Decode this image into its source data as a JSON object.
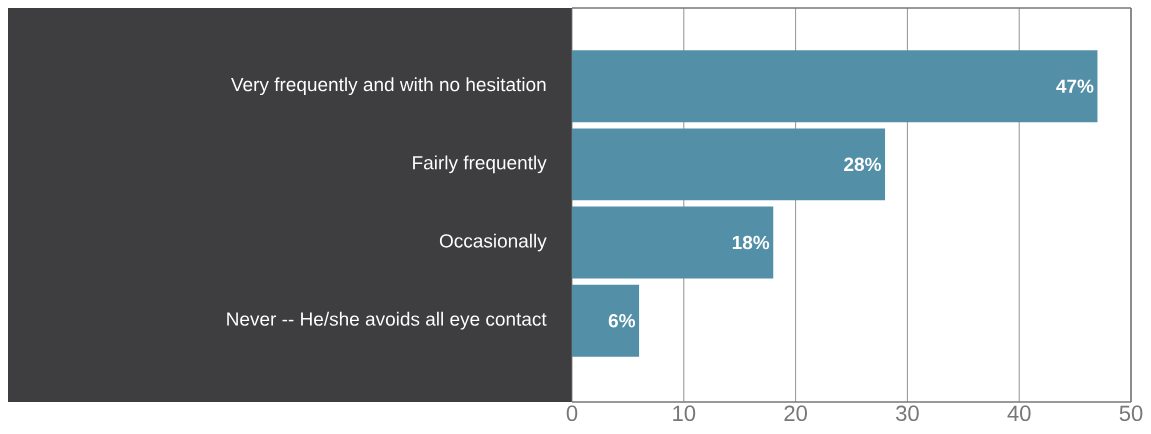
{
  "chart_data": {
    "type": "bar",
    "orientation": "horizontal",
    "categories": [
      "Very frequently and with no hesitation",
      "Fairly frequently",
      "Occasionally",
      "Never -- He/she avoids all eye contact"
    ],
    "values": [
      47,
      28,
      18,
      6
    ],
    "value_labels": [
      "47%",
      "28%",
      "18%",
      "6%"
    ],
    "color": "#548fa8",
    "xlim": [
      0,
      50
    ],
    "xticks": [
      0,
      10,
      20,
      30,
      40,
      50
    ],
    "grid": "x"
  }
}
